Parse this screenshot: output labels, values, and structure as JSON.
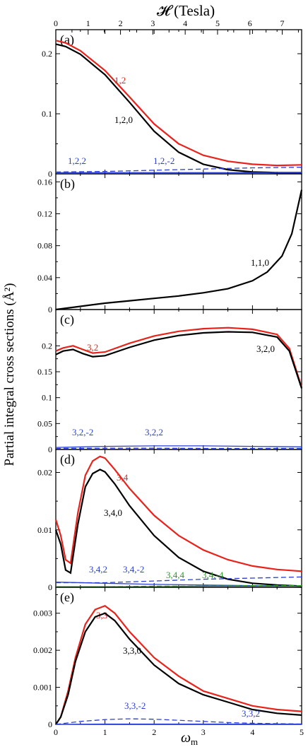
{
  "figure": {
    "top_axis": {
      "label": "𝓗 (Tesla)",
      "ticks": [
        "0",
        "1",
        "2",
        "3",
        "4",
        "5",
        "6",
        "7"
      ],
      "range": [
        0,
        7.6
      ]
    },
    "bottom_axis": {
      "label": "ω",
      "label_sub": "m",
      "ticks": [
        "0",
        "1",
        "2",
        "3",
        "4",
        "5"
      ],
      "range": [
        0,
        5
      ]
    },
    "y_label": "Partial integral cross sections (Å²)"
  },
  "colors": {
    "red": "#e8231c",
    "black": "#000000",
    "blue": "#2a3fd6",
    "green": "#2a9a2a"
  },
  "chart_data": [
    {
      "type": "line",
      "panel": "(a)",
      "x_range": [
        0,
        5
      ],
      "ylim": [
        0,
        0.24
      ],
      "y_ticks": [
        "0",
        "0.1",
        "0.2"
      ],
      "y_tick_values": [
        0,
        0.1,
        0.2
      ],
      "series": [
        {
          "name": "1,2",
          "color": "red",
          "dash": false,
          "x": [
            0,
            0.2,
            0.5,
            1,
            1.5,
            2,
            2.5,
            3,
            3.5,
            4,
            4.5,
            5
          ],
          "y": [
            0.222,
            0.218,
            0.205,
            0.172,
            0.128,
            0.083,
            0.05,
            0.031,
            0.021,
            0.016,
            0.014,
            0.015
          ]
        },
        {
          "name": "1,2,0",
          "color": "black",
          "dash": false,
          "x": [
            0,
            0.2,
            0.5,
            1,
            1.5,
            2,
            2.5,
            3,
            3.5,
            4,
            4.5,
            5
          ],
          "y": [
            0.216,
            0.212,
            0.199,
            0.165,
            0.119,
            0.071,
            0.036,
            0.016,
            0.007,
            0.003,
            0.002,
            0.002
          ]
        },
        {
          "name": "1,2,2",
          "color": "blue",
          "dash": false,
          "x": [
            0,
            1,
            2,
            3,
            4,
            5
          ],
          "y": [
            0.002,
            0.002,
            0.002,
            0.002,
            0.002,
            0.002
          ]
        },
        {
          "name": "1,2,-2",
          "color": "blue",
          "dash": true,
          "x": [
            0,
            1,
            2,
            3,
            4,
            5
          ],
          "y": [
            0.003,
            0.004,
            0.006,
            0.008,
            0.01,
            0.011
          ]
        }
      ]
    },
    {
      "type": "line",
      "panel": "(b)",
      "x_range": [
        0,
        5
      ],
      "ylim": [
        0,
        0.17
      ],
      "y_ticks": [
        "0",
        "0.04",
        "0.08",
        "0.12",
        "0.16"
      ],
      "y_tick_values": [
        0,
        0.04,
        0.08,
        0.12,
        0.16
      ],
      "series": [
        {
          "name": "1,1,0",
          "color": "black",
          "dash": false,
          "x": [
            0,
            0.5,
            1,
            1.5,
            2,
            2.5,
            3,
            3.5,
            4,
            4.3,
            4.6,
            4.8,
            5
          ],
          "y": [
            0.0,
            0.004,
            0.008,
            0.011,
            0.014,
            0.017,
            0.021,
            0.026,
            0.036,
            0.047,
            0.067,
            0.095,
            0.15
          ]
        }
      ]
    },
    {
      "type": "line",
      "panel": "(c)",
      "x_range": [
        0,
        5
      ],
      "ylim": [
        0,
        0.27
      ],
      "y_ticks": [
        "0",
        "0.05",
        "0.1",
        "0.15",
        "0.2"
      ],
      "y_tick_values": [
        0,
        0.05,
        0.1,
        0.15,
        0.2
      ],
      "series": [
        {
          "name": "3,2",
          "color": "red",
          "dash": false,
          "x": [
            0,
            0.15,
            0.35,
            0.55,
            0.75,
            1,
            1.5,
            2,
            2.5,
            3,
            3.5,
            4,
            4.5,
            4.75,
            5
          ],
          "y": [
            0.19,
            0.196,
            0.2,
            0.193,
            0.186,
            0.188,
            0.205,
            0.219,
            0.228,
            0.233,
            0.235,
            0.232,
            0.222,
            0.195,
            0.12
          ]
        },
        {
          "name": "3,2,0",
          "color": "black",
          "dash": false,
          "x": [
            0,
            0.15,
            0.35,
            0.55,
            0.75,
            1,
            1.5,
            2,
            2.5,
            3,
            3.5,
            4,
            4.5,
            4.75,
            5
          ],
          "y": [
            0.183,
            0.19,
            0.193,
            0.185,
            0.179,
            0.181,
            0.197,
            0.211,
            0.22,
            0.225,
            0.227,
            0.226,
            0.217,
            0.19,
            0.118
          ]
        },
        {
          "name": "3,2,-2",
          "color": "blue",
          "dash": true,
          "x": [
            0,
            1,
            2,
            3,
            4,
            5
          ],
          "y": [
            0.002,
            0.0025,
            0.0025,
            0.002,
            0.002,
            0.002
          ]
        },
        {
          "name": "3,2,2",
          "color": "blue",
          "dash": false,
          "x": [
            0,
            1,
            2,
            3,
            4,
            5
          ],
          "y": [
            0.004,
            0.006,
            0.007,
            0.007,
            0.006,
            0.005
          ]
        }
      ]
    },
    {
      "type": "line",
      "panel": "(d)",
      "x_range": [
        0,
        5
      ],
      "ylim": [
        0,
        0.024
      ],
      "y_ticks": [
        "0",
        "0.01",
        "0.02"
      ],
      "y_tick_values": [
        0,
        0.01,
        0.02
      ],
      "series": [
        {
          "name": "3,4",
          "color": "red",
          "dash": false,
          "x": [
            0,
            0.1,
            0.2,
            0.3,
            0.45,
            0.6,
            0.75,
            0.9,
            1.0,
            1.2,
            1.5,
            2,
            2.5,
            3,
            3.5,
            4,
            4.5,
            5
          ],
          "y": [
            0.0118,
            0.009,
            0.0048,
            0.0042,
            0.013,
            0.0195,
            0.022,
            0.0228,
            0.0225,
            0.0205,
            0.0172,
            0.0125,
            0.009,
            0.0065,
            0.0048,
            0.0037,
            0.0031,
            0.0028
          ]
        },
        {
          "name": "3,4,0",
          "color": "black",
          "dash": false,
          "x": [
            0,
            0.1,
            0.2,
            0.3,
            0.45,
            0.6,
            0.75,
            0.9,
            1.0,
            1.2,
            1.5,
            2,
            2.5,
            3,
            3.5,
            4,
            4.5,
            5
          ],
          "y": [
            0.01,
            0.0075,
            0.003,
            0.0025,
            0.011,
            0.0175,
            0.0198,
            0.0205,
            0.0201,
            0.018,
            0.0142,
            0.009,
            0.0052,
            0.0028,
            0.0014,
            0.0007,
            0.0004,
            0.0002
          ]
        },
        {
          "name": "3,4,2",
          "color": "blue",
          "dash": false,
          "x": [
            0,
            1,
            2,
            3,
            4,
            5
          ],
          "y": [
            0.0009,
            0.0007,
            0.0005,
            0.0004,
            0.0003,
            0.0002
          ]
        },
        {
          "name": "3,4,-2",
          "color": "blue",
          "dash": true,
          "x": [
            0,
            1,
            2,
            3,
            4,
            5
          ],
          "y": [
            0.0008,
            0.0008,
            0.0011,
            0.0014,
            0.0016,
            0.0018
          ]
        },
        {
          "name": "3,4,4",
          "color": "green",
          "dash": false,
          "x": [
            0,
            1,
            2,
            3,
            4,
            5
          ],
          "y": [
            0.0001,
            0.0001,
            0.0001,
            0.0002,
            0.0002,
            0.0002
          ]
        },
        {
          "name": "3,4,-4",
          "color": "green",
          "dash": true,
          "x": [
            0,
            1,
            2,
            3,
            4,
            5
          ],
          "y": [
            0.0001,
            0.0001,
            0.0002,
            0.0002,
            0.0003,
            0.0003
          ]
        }
      ]
    },
    {
      "type": "line",
      "panel": "(e)",
      "x_range": [
        0,
        5
      ],
      "ylim": [
        0,
        0.0037
      ],
      "y_ticks": [
        "0",
        "0.001",
        "0.002",
        "0.003"
      ],
      "y_tick_values": [
        0,
        0.001,
        0.002,
        0.003
      ],
      "series": [
        {
          "name": "3,3",
          "color": "red",
          "dash": false,
          "x": [
            0,
            0.1,
            0.25,
            0.4,
            0.6,
            0.8,
            1.0,
            1.2,
            1.5,
            2,
            2.5,
            3,
            3.5,
            4,
            4.5,
            5
          ],
          "y": [
            0.0,
            0.0002,
            0.0009,
            0.0018,
            0.0027,
            0.0031,
            0.0032,
            0.003,
            0.0025,
            0.0018,
            0.0013,
            0.0009,
            0.0007,
            0.0005,
            0.0004,
            0.00035
          ]
        },
        {
          "name": "3,3,0",
          "color": "black",
          "dash": false,
          "x": [
            0,
            0.1,
            0.25,
            0.4,
            0.6,
            0.8,
            1.0,
            1.2,
            1.5,
            2,
            2.5,
            3,
            3.5,
            4,
            4.5,
            5
          ],
          "y": [
            0.0,
            0.0002,
            0.0008,
            0.0017,
            0.0025,
            0.0029,
            0.003,
            0.0028,
            0.0023,
            0.0016,
            0.0011,
            0.0008,
            0.0006,
            0.0004,
            0.0003,
            0.00025
          ]
        },
        {
          "name": "3,3,-2",
          "color": "blue",
          "dash": true,
          "x": [
            0,
            0.5,
            1,
            1.5,
            2,
            2.5,
            3,
            3.5,
            4,
            5
          ],
          "y": [
            0.0,
            8e-05,
            0.00013,
            0.00015,
            0.00014,
            0.00011,
            8e-05,
            5e-05,
            3e-05,
            1e-05
          ]
        },
        {
          "name": "3,3,2",
          "color": "blue",
          "dash": false,
          "x": [
            0,
            1,
            2,
            3,
            4,
            5
          ],
          "y": [
            0.0,
            1e-05,
            1e-05,
            1e-05,
            1e-05,
            1e-05
          ]
        }
      ]
    }
  ]
}
